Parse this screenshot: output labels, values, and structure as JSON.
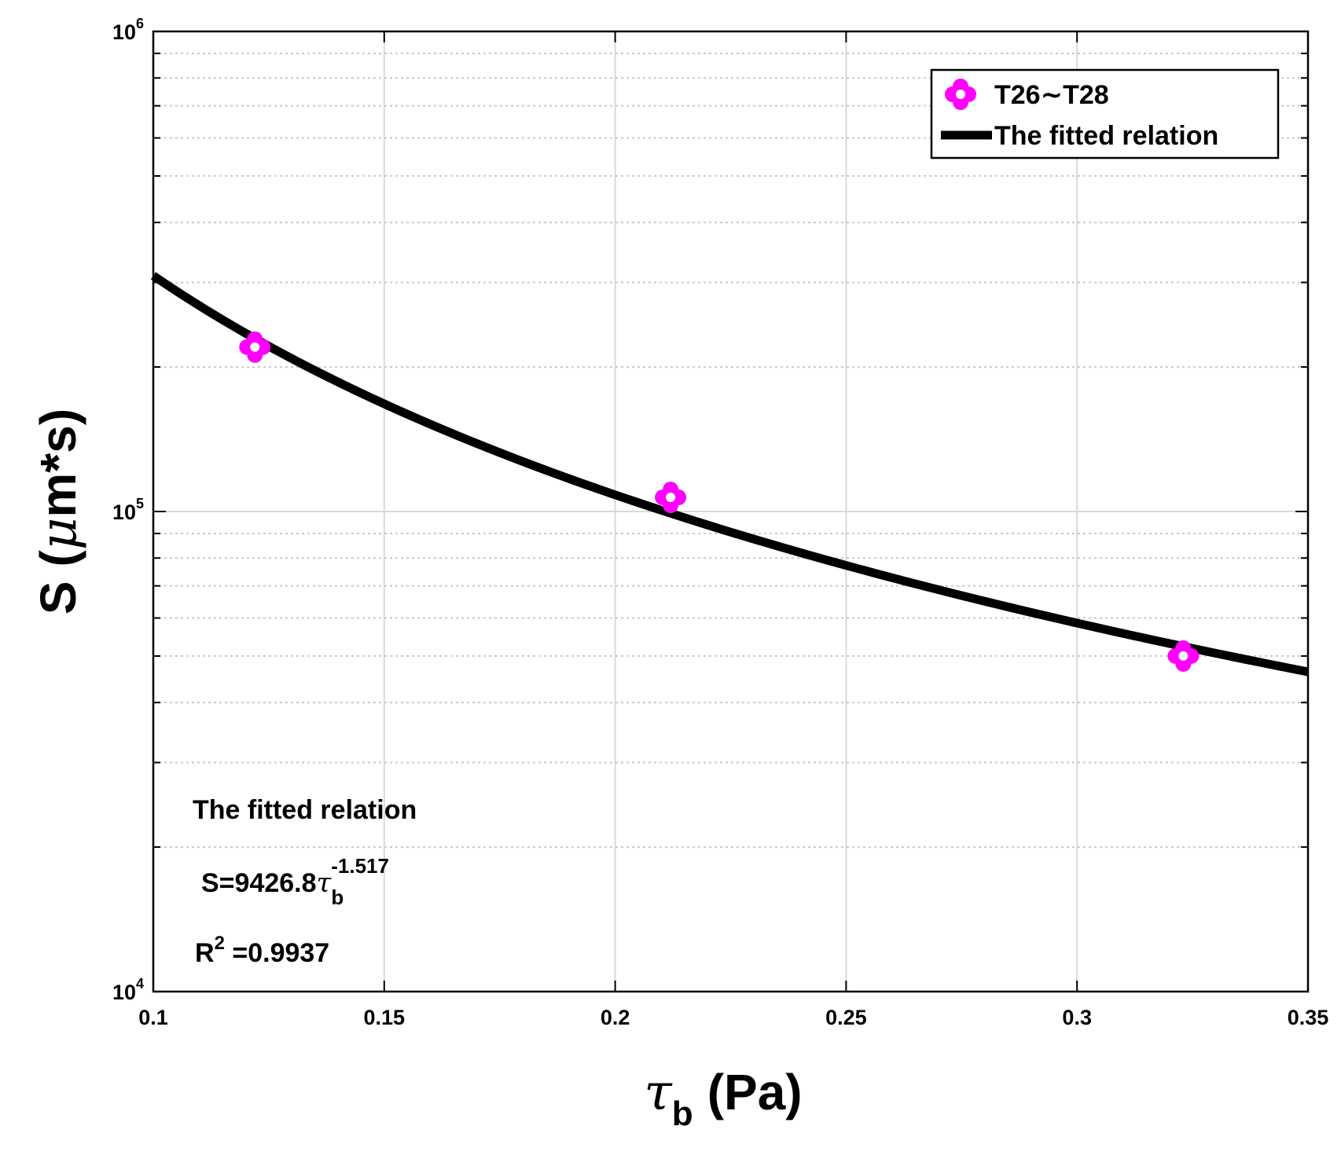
{
  "chart_data": {
    "type": "scatter",
    "title": "",
    "xlabel": {
      "symbol": "τ",
      "subscript": "b",
      "unit": "(Pa)"
    },
    "ylabel": {
      "text": "S",
      "unit_open": "(",
      "mu": "μ",
      "unit_rest": "m*s)"
    },
    "xlim": [
      0.1,
      0.35
    ],
    "ylim": [
      10000,
      1000000
    ],
    "yscale": "log",
    "x_ticks": [
      0.1,
      0.15,
      0.2,
      0.25,
      0.3,
      0.35
    ],
    "x_tick_labels": [
      "0.1",
      "0.15",
      "0.2",
      "0.25",
      "0.3",
      "0.35"
    ],
    "y_ticks": [
      10000,
      100000,
      1000000
    ],
    "y_tick_labels": [
      {
        "base": "10",
        "exp": "4"
      },
      {
        "base": "10",
        "exp": "5"
      },
      {
        "base": "10",
        "exp": "6"
      }
    ],
    "grid": true,
    "legend_position": "top-right",
    "series": [
      {
        "name": "T26∼T28",
        "kind": "scatter",
        "marker": "flower",
        "color": "#ff00ff",
        "x": [
          0.122,
          0.212,
          0.323
        ],
        "y": [
          220000,
          107000,
          50000
        ]
      },
      {
        "name": "The fitted relation",
        "kind": "line",
        "color": "#000000",
        "fit": {
          "coefficient": 9426.8,
          "exponent": -1.517
        }
      }
    ],
    "annotation": {
      "heading": "The fitted relation",
      "equation_lhs": "S=9426.8",
      "equation_symbol": "τ",
      "equation_sub": "b",
      "equation_exp": "-1.517",
      "r2_label": "R",
      "r2_exp": "2",
      "r2_value": " =0.9937"
    }
  }
}
